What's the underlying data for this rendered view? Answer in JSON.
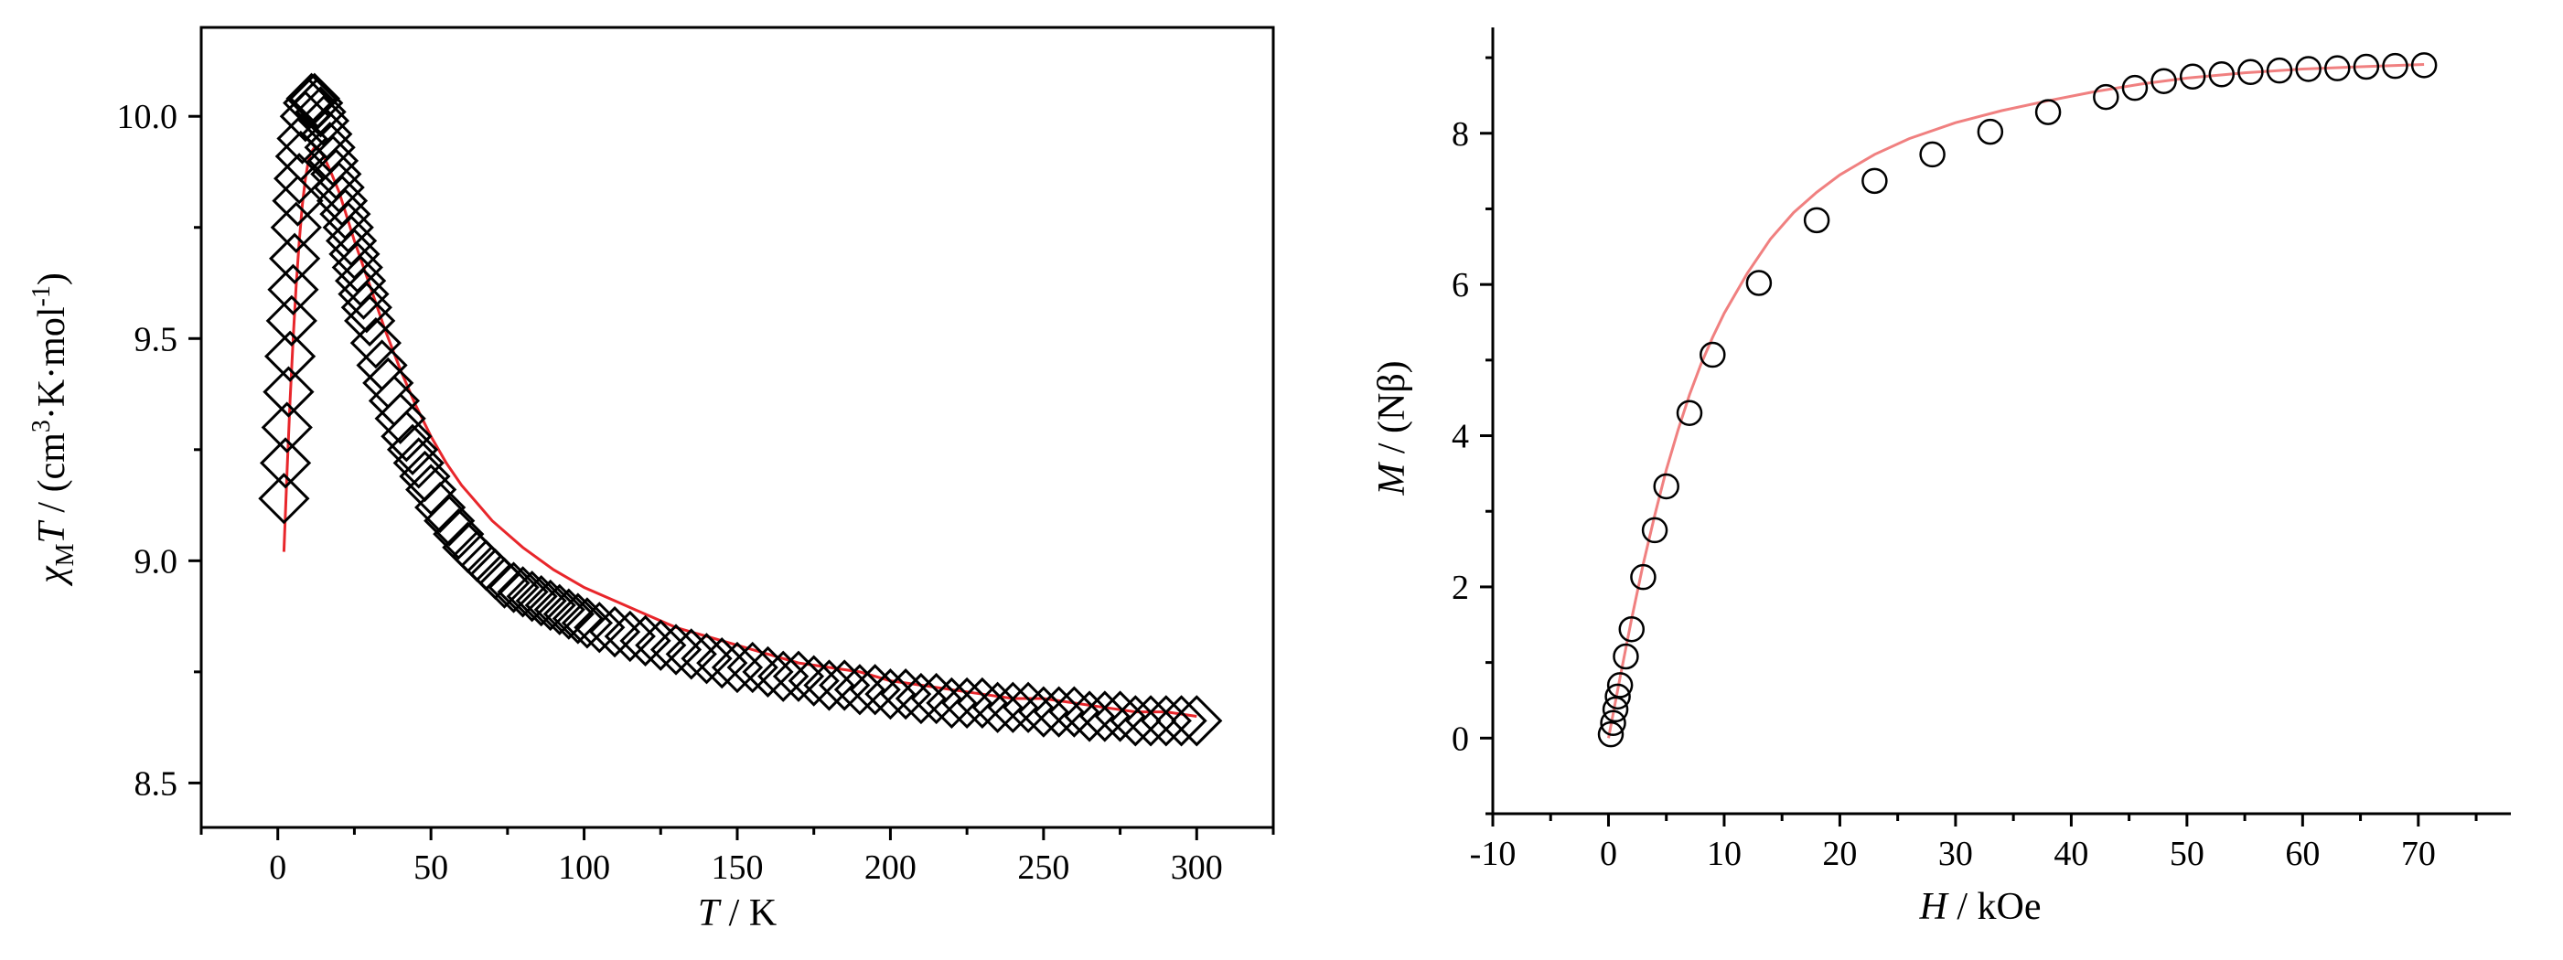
{
  "chart_data": [
    {
      "type": "scatter",
      "xlabel_italic": "T",
      "xlabel_rest": " / K",
      "ylabel_chi": "χ",
      "ylabel_sub": "M",
      "ylabel_T": "T",
      "ylabel_unit_a": " / (cm",
      "ylabel_sup1": "3",
      "ylabel_unit_b": "·K·mol",
      "ylabel_sup2": "-1",
      "ylabel_unit_c": ")",
      "xlim": [
        -25,
        325
      ],
      "ylim": [
        8.4,
        10.2
      ],
      "xticks": [
        0,
        50,
        100,
        150,
        200,
        250,
        300
      ],
      "yticks": [
        8.5,
        9.0,
        9.5,
        10.0
      ],
      "xtick_labels": [
        "0",
        "50",
        "100",
        "150",
        "200",
        "250",
        "300"
      ],
      "ytick_labels": [
        "8.5",
        "9.0",
        "9.5",
        "10.0"
      ],
      "marker": "diamond",
      "marker_color": "#000000",
      "fit_color": "#e8262b",
      "series": [
        {
          "x": [
            2,
            2.5,
            3,
            3.5,
            4,
            4.5,
            5,
            5.5,
            6,
            6.5,
            7,
            7.5,
            8,
            9,
            10,
            11,
            12,
            13,
            14,
            15,
            16,
            17,
            18,
            19,
            20,
            21,
            22,
            23,
            24,
            25,
            26,
            27,
            28,
            29,
            30,
            32,
            34,
            36,
            38,
            40,
            42,
            44,
            46,
            48,
            50,
            53,
            56,
            59,
            62,
            65,
            68,
            71,
            74,
            77,
            80,
            83,
            86,
            89,
            92,
            95,
            98,
            101,
            105,
            110,
            115,
            120,
            125,
            130,
            135,
            140,
            145,
            150,
            155,
            160,
            165,
            170,
            175,
            180,
            185,
            190,
            195,
            200,
            205,
            210,
            215,
            220,
            225,
            230,
            235,
            240,
            245,
            250,
            255,
            260,
            265,
            270,
            275,
            280,
            285,
            290,
            295,
            300
          ],
          "y": [
            9.14,
            9.22,
            9.3,
            9.38,
            9.46,
            9.54,
            9.61,
            9.68,
            9.75,
            9.81,
            9.86,
            9.91,
            9.95,
            10.0,
            10.03,
            10.04,
            10.04,
            10.03,
            10.01,
            9.99,
            9.96,
            9.93,
            9.9,
            9.87,
            9.84,
            9.81,
            9.78,
            9.75,
            9.72,
            9.69,
            9.66,
            9.63,
            9.6,
            9.57,
            9.54,
            9.49,
            9.44,
            9.4,
            9.36,
            9.32,
            9.28,
            9.25,
            9.22,
            9.19,
            9.16,
            9.12,
            9.09,
            9.06,
            9.03,
            9.01,
            8.99,
            8.97,
            8.95,
            8.94,
            8.93,
            8.92,
            8.91,
            8.9,
            8.89,
            8.88,
            8.87,
            8.86,
            8.85,
            8.84,
            8.83,
            8.82,
            8.81,
            8.8,
            8.79,
            8.78,
            8.77,
            8.76,
            8.76,
            8.75,
            8.74,
            8.74,
            8.73,
            8.72,
            8.72,
            8.71,
            8.71,
            8.7,
            8.7,
            8.69,
            8.69,
            8.68,
            8.68,
            8.68,
            8.67,
            8.67,
            8.67,
            8.66,
            8.66,
            8.66,
            8.65,
            8.65,
            8.65,
            8.64,
            8.64,
            8.64,
            8.64,
            8.64
          ]
        }
      ],
      "fit": {
        "x": [
          2,
          3,
          4,
          5,
          6,
          7,
          8,
          9,
          10,
          11,
          12,
          13,
          14,
          15,
          17,
          20,
          25,
          30,
          35,
          40,
          45,
          50,
          55,
          60,
          65,
          70,
          75,
          80,
          90,
          100,
          110,
          120,
          130,
          140,
          150,
          160,
          170,
          180,
          190,
          200,
          210,
          220,
          230,
          240,
          250,
          260,
          270,
          280,
          290,
          300
        ],
        "y": [
          9.02,
          9.2,
          9.36,
          9.5,
          9.62,
          9.72,
          9.8,
          9.86,
          9.9,
          9.92,
          9.93,
          9.93,
          9.92,
          9.91,
          9.88,
          9.83,
          9.72,
          9.62,
          9.52,
          9.43,
          9.35,
          9.28,
          9.22,
          9.17,
          9.13,
          9.09,
          9.06,
          9.03,
          8.98,
          8.94,
          8.91,
          8.88,
          8.85,
          8.83,
          8.81,
          8.79,
          8.77,
          8.76,
          8.75,
          8.73,
          8.72,
          8.71,
          8.7,
          8.69,
          8.69,
          8.68,
          8.67,
          8.66,
          8.66,
          8.65
        ]
      }
    },
    {
      "type": "scatter",
      "xlabel_italic": "H",
      "xlabel_rest": " / kOe",
      "ylabel_italic": "M",
      "ylabel_rest": " / (Nβ)",
      "xlim": [
        -10,
        78
      ],
      "ylim": [
        -1,
        9.4
      ],
      "xticks": [
        -10,
        0,
        10,
        20,
        30,
        40,
        50,
        60,
        70
      ],
      "yticks": [
        0,
        2,
        4,
        6,
        8
      ],
      "xtick_labels": [
        "-10",
        "0",
        "10",
        "20",
        "30",
        "40",
        "50",
        "60",
        "70"
      ],
      "ytick_labels": [
        "0",
        "2",
        "4",
        "6",
        "8"
      ],
      "marker": "circle",
      "marker_color": "#000000",
      "fit_color": "#f08080",
      "series": [
        {
          "x": [
            0.2,
            0.4,
            0.6,
            0.8,
            1.0,
            1.5,
            2.0,
            3.0,
            4.0,
            5.0,
            7.0,
            9.0,
            13.0,
            18.0,
            23.0,
            28.0,
            33.0,
            38.0,
            43.0,
            45.5,
            48.0,
            50.5,
            53.0,
            55.5,
            58.0,
            60.5,
            63.0,
            65.5,
            68.0,
            70.5
          ],
          "y": [
            0.05,
            0.2,
            0.38,
            0.55,
            0.7,
            1.08,
            1.44,
            2.13,
            2.75,
            3.33,
            4.3,
            5.07,
            6.02,
            6.85,
            7.37,
            7.72,
            8.02,
            8.28,
            8.48,
            8.6,
            8.69,
            8.75,
            8.78,
            8.81,
            8.83,
            8.85,
            8.86,
            8.88,
            8.89,
            8.9
          ]
        }
      ],
      "fit": {
        "x": [
          0,
          1,
          2,
          3,
          4,
          5,
          6,
          7,
          8,
          9,
          10,
          12,
          14,
          16,
          18,
          20,
          23,
          26,
          30,
          34,
          38,
          42,
          46,
          50,
          55,
          60,
          65,
          70.5
        ],
        "y": [
          0,
          0.8,
          1.58,
          2.3,
          2.95,
          3.55,
          4.07,
          4.54,
          4.95,
          5.3,
          5.62,
          6.15,
          6.6,
          6.95,
          7.22,
          7.45,
          7.72,
          7.93,
          8.14,
          8.3,
          8.43,
          8.55,
          8.65,
          8.73,
          8.8,
          8.85,
          8.88,
          8.91
        ]
      }
    }
  ]
}
